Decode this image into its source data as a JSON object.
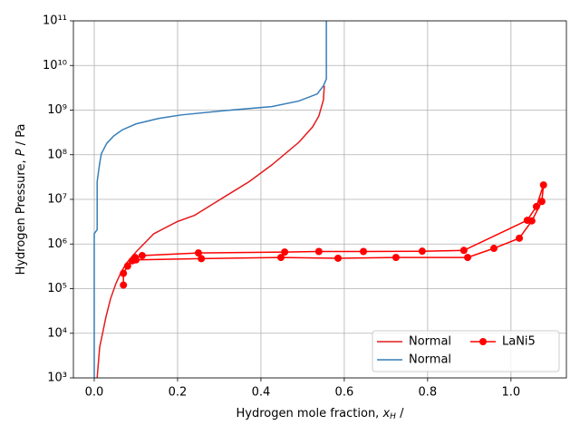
{
  "chart_data": {
    "type": "line",
    "xlabel": [
      "Hydrogen mole fraction, ",
      "x",
      "H",
      " /"
    ],
    "ylabel": [
      "Hydrogen Pressure, ",
      "P",
      " / Pa"
    ],
    "xlim": [
      -0.05,
      1.133
    ],
    "ylim": [
      1000,
      100000000000
    ],
    "yscale": "log",
    "grid": true,
    "xticks": [
      {
        "value": 0,
        "label": "0.0"
      },
      0.2,
      0.4,
      0.6,
      0.8,
      {
        "value": 1,
        "label": "1.0"
      }
    ],
    "yticks": [
      {
        "value": 1000,
        "label": "10³"
      },
      {
        "value": 10000,
        "label": "10⁴"
      },
      {
        "value": 100000,
        "label": "10⁵"
      },
      {
        "value": 1000000,
        "label": "10⁶"
      },
      {
        "value": 10000000,
        "label": "10⁷"
      },
      {
        "value": 100000000,
        "label": "10⁸"
      },
      {
        "value": 1000000000,
        "label": "10⁹"
      },
      {
        "value": 10000000000,
        "label": "10¹⁰"
      },
      {
        "value": 100000000000,
        "label": "10¹¹"
      }
    ],
    "legend": {
      "loc": "lower right",
      "ncol": 2
    },
    "series": [
      {
        "name": "Normal",
        "color": "#e41a1c",
        "marker": false,
        "x": [
          0.007,
          0.013,
          0.02,
          0.028,
          0.039,
          0.052,
          0.065,
          0.078,
          0.1,
          0.143,
          0.2,
          0.241,
          0.285,
          0.328,
          0.372,
          0.426,
          0.491,
          0.524,
          0.539,
          0.55,
          0.552
        ],
        "values": [
          1000,
          4900,
          10000,
          23000,
          59000,
          130000,
          240000,
          380000,
          660000,
          1700000,
          3200000,
          4400000,
          7900000,
          14000000,
          25000000,
          59000000,
          190000000,
          420000000,
          740000000,
          1700000000,
          3500000000
        ]
      },
      {
        "name": "Normal",
        "color": "#377eb8",
        "marker": false,
        "x": [
          0,
          0,
          0.007,
          0.007,
          0.013,
          0.017,
          0.03,
          0.046,
          0.067,
          0.1,
          0.154,
          0.209,
          0.317,
          0.426,
          0.491,
          0.535,
          0.55,
          0.557,
          0.557
        ],
        "values": [
          1000,
          1700000,
          2100000,
          25000000,
          64000000,
          105000000,
          180000000,
          260000000,
          360000000,
          490000000,
          650000000,
          780000000,
          980000000,
          1200000000,
          1600000000,
          2300000000,
          3500000000,
          5000000000,
          100000000000
        ]
      },
      {
        "name": "LaNi5",
        "color": "#ff0000",
        "marker": true,
        "x": [
          0.07,
          0.07,
          0.08,
          0.091,
          0.098,
          0.115,
          0.25,
          0.457,
          0.539,
          0.646,
          0.787,
          0.887,
          1.039,
          1.061,
          1.078,
          1.074,
          1.05,
          1.02,
          0.959,
          0.896,
          0.724,
          0.585,
          0.448,
          0.257,
          0.1
        ],
        "values": [
          120000,
          220000,
          320000,
          420000,
          500000,
          550000,
          630000,
          660000,
          680000,
          680000,
          690000,
          720000,
          3400000,
          6900000,
          21000000,
          9000000,
          3300000,
          1350000,
          800000,
          500000,
          500000,
          480000,
          500000,
          470000,
          440000
        ]
      }
    ]
  }
}
